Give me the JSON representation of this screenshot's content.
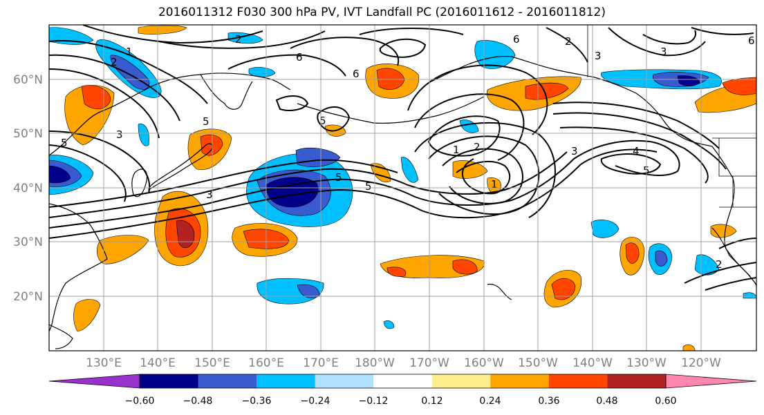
{
  "title": "2016011312 F030 300 hPa PV, IVT Landfall PC (2016011612 - 2016011812)",
  "map": {
    "lat_labels": [
      "20°N",
      "30°N",
      "40°N",
      "50°N",
      "60°N"
    ],
    "lon_labels": [
      "130°E",
      "140°E",
      "150°E",
      "160°E",
      "170°E",
      "180°W",
      "170°W",
      "160°W",
      "150°W",
      "140°W",
      "130°W",
      "120°W"
    ],
    "contour_labels": [
      "1",
      "2",
      "3",
      "5",
      "6",
      "5",
      "3",
      "5",
      "5",
      "2",
      "6",
      "6",
      "1",
      "2",
      "3",
      "4",
      "5",
      "3",
      "2",
      "3",
      "5",
      "1",
      "2",
      "6"
    ],
    "colors": {
      "land_outline": "#000000",
      "gridline": "#a0a0a0",
      "contour": "#000000"
    }
  },
  "colorbar": {
    "ticks": [
      "−0.60",
      "−0.48",
      "−0.36",
      "−0.24",
      "−0.12",
      "0.12",
      "0.24",
      "0.36",
      "0.48",
      "0.60"
    ],
    "colors": [
      "#9932cc",
      "#00008b",
      "#3a5bcf",
      "#00bfff",
      "#b0e2ff",
      "#ffffff",
      "#ffec8b",
      "#ffa500",
      "#ff4500",
      "#b22222",
      "#ff87b0"
    ]
  }
}
